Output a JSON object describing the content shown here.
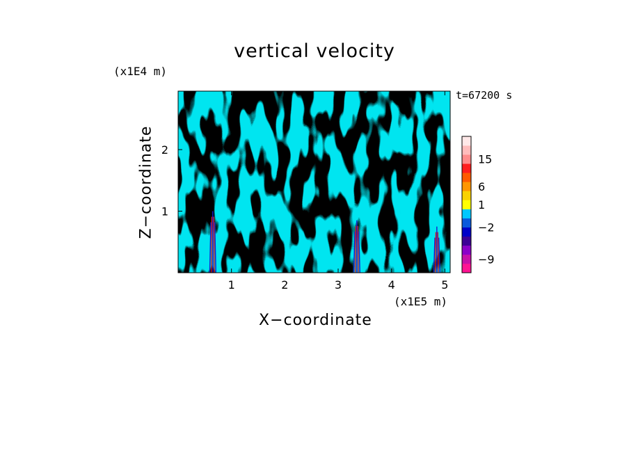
{
  "chart_data": {
    "type": "heatmap",
    "title": "vertical velocity",
    "xlabel": "X−coordinate",
    "ylabel": "Z−coordinate",
    "x_unit": "(x1E5 m)",
    "z_unit": "(x1E4 m)",
    "time_label": "t=67200 s",
    "xlim": [
      0,
      5.1
    ],
    "ylim": [
      0,
      2.95
    ],
    "x_ticks": [
      1,
      2,
      3,
      4,
      5
    ],
    "x_tick_labels": [
      "1",
      "2",
      "3",
      "4",
      "5"
    ],
    "y_ticks": [
      1,
      2
    ],
    "y_tick_labels": [
      "1",
      "2"
    ],
    "field_colors": {
      "positive": "#ffff00",
      "negative": "#00e5f0"
    },
    "colorbar": {
      "tick_labels": [
        "15",
        "6",
        "1",
        "−2",
        "−9"
      ],
      "colors": [
        "#ff1493",
        "#c810a8",
        "#8b00c8",
        "#3c0096",
        "#0000c8",
        "#0a5adc",
        "#00c8ff",
        "#ffff00",
        "#fad200",
        "#ff9600",
        "#ff5a00",
        "#ff1e1e",
        "#ff8c8c",
        "#ffbcbc",
        "#ffe8e8"
      ]
    },
    "columns": [
      {
        "x": 0.65,
        "zmax": 1.0
      },
      {
        "x": 3.35,
        "zmax": 0.85
      },
      {
        "x": 4.85,
        "zmax": 0.75
      }
    ]
  }
}
